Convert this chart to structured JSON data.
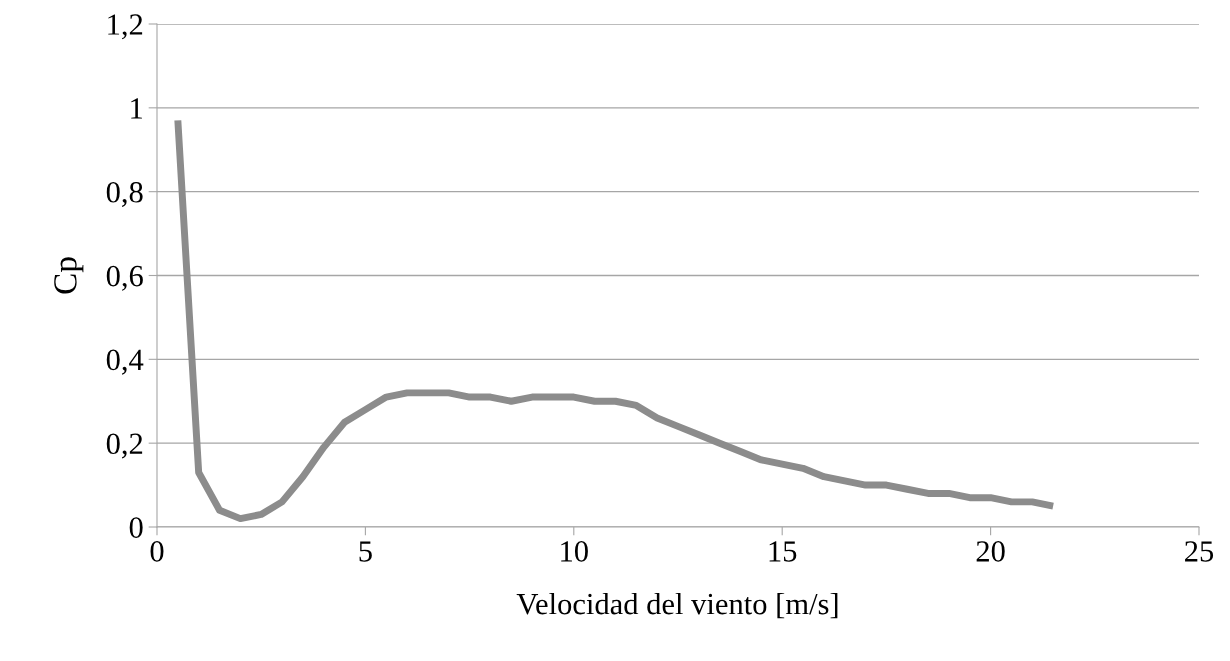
{
  "chart_data": {
    "type": "line",
    "xlabel": "Velocidad del viento [m/s]",
    "ylabel": "Cp",
    "x": [
      0.5,
      1.0,
      1.5,
      2.0,
      2.5,
      3.0,
      3.5,
      4.0,
      4.5,
      5.0,
      5.5,
      6.0,
      6.5,
      7.0,
      7.5,
      8.0,
      8.5,
      9.0,
      9.5,
      10.0,
      10.5,
      11.0,
      11.5,
      12.0,
      12.5,
      13.0,
      13.5,
      14.0,
      14.5,
      15.0,
      15.5,
      16.0,
      16.5,
      17.0,
      17.5,
      18.0,
      18.5,
      19.0,
      19.5,
      20.0,
      20.5,
      21.0,
      21.5
    ],
    "series": [
      {
        "color": "#8c8c8c",
        "values": [
          0.97,
          0.13,
          0.04,
          0.02,
          0.03,
          0.06,
          0.12,
          0.19,
          0.25,
          0.28,
          0.31,
          0.32,
          0.32,
          0.32,
          0.31,
          0.31,
          0.3,
          0.31,
          0.31,
          0.31,
          0.3,
          0.3,
          0.29,
          0.26,
          0.24,
          0.22,
          0.2,
          0.18,
          0.16,
          0.15,
          0.14,
          0.12,
          0.11,
          0.1,
          0.1,
          0.09,
          0.08,
          0.08,
          0.07,
          0.07,
          0.06,
          0.06,
          0.05
        ]
      }
    ],
    "xlim": [
      0,
      25
    ],
    "xticks": [
      0,
      5,
      10,
      15,
      20,
      25
    ],
    "ylim": [
      0,
      1.2
    ],
    "yticks": [
      0,
      {
        "value": 0.2,
        "label": "0,2"
      },
      {
        "value": 0.4,
        "label": "0,4"
      },
      {
        "value": 0.6,
        "label": "0,6"
      },
      {
        "value": 0.8,
        "label": "0,8"
      },
      1,
      {
        "value": 1.2,
        "label": "1,2"
      }
    ],
    "grid": "y",
    "marker": "none",
    "line_style": "solid",
    "legend": false
  }
}
